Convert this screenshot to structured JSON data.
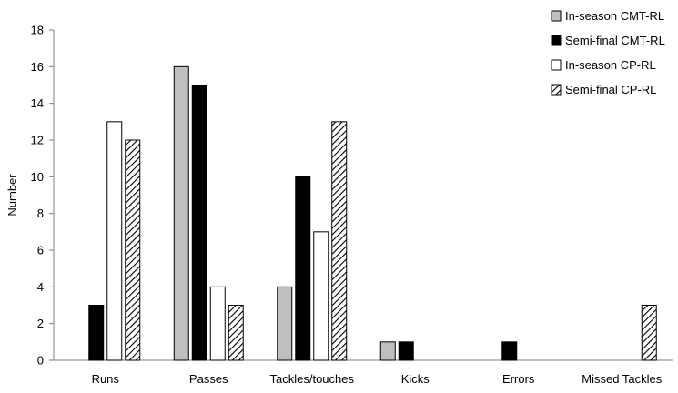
{
  "chart_data": {
    "type": "bar",
    "ylabel": "Number",
    "xlabel": "",
    "ylim": [
      0,
      18
    ],
    "yticks": [
      0,
      2,
      4,
      6,
      8,
      10,
      12,
      14,
      16,
      18
    ],
    "categories": [
      "Runs",
      "Passes",
      "Tackles/touches",
      "Kicks",
      "Errors",
      "Missed Tackles"
    ],
    "series": [
      {
        "name": "In-season CMT-RL",
        "fill": "#bfbfbf",
        "pattern": "none",
        "values": [
          0,
          16,
          4,
          1,
          0,
          0
        ]
      },
      {
        "name": "Semi-final CMT-RL",
        "fill": "#000000",
        "pattern": "none",
        "values": [
          3,
          15,
          10,
          1,
          1,
          0
        ]
      },
      {
        "name": "In-season CP-RL",
        "fill": "#ffffff",
        "pattern": "none",
        "values": [
          13,
          4,
          7,
          0,
          0,
          0
        ]
      },
      {
        "name": "Semi-final CP-RL",
        "fill": "#ffffff",
        "pattern": "diagonal-hatch",
        "values": [
          12,
          3,
          13,
          0,
          0,
          3
        ]
      }
    ],
    "legend_position": "top-right",
    "grid": false
  }
}
